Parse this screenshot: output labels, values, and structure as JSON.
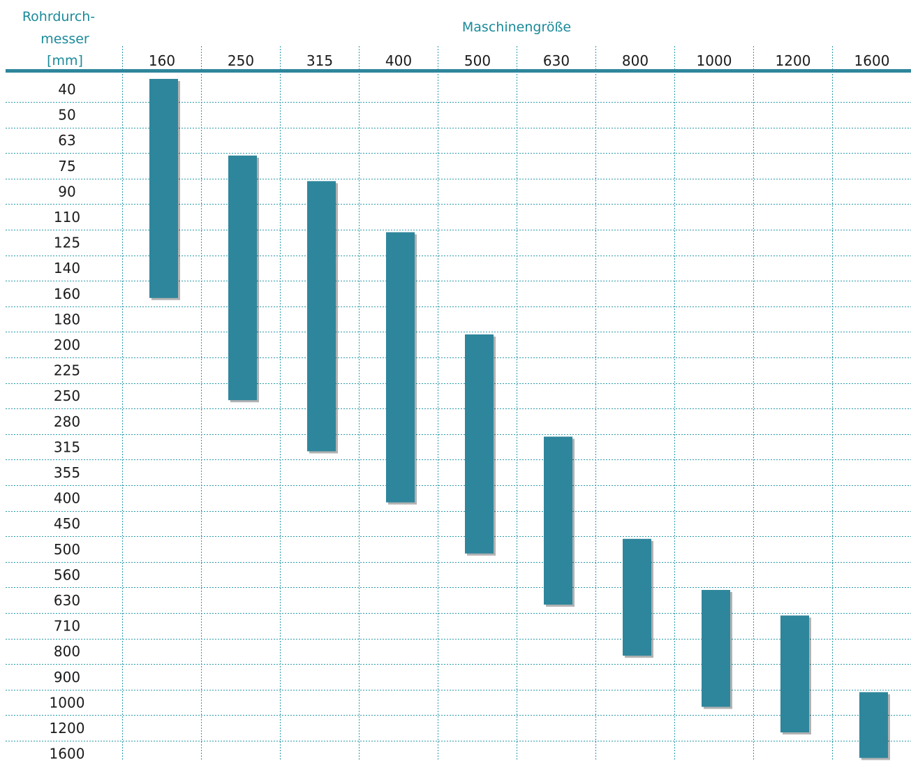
{
  "chart_data": {
    "type": "bar",
    "header": {
      "row_axis_title": [
        "Rohrdurch-",
        "messer",
        "[mm]"
      ],
      "column_axis_title": "Maschinengröße"
    },
    "columns": [
      "160",
      "250",
      "315",
      "400",
      "500",
      "630",
      "800",
      "1000",
      "1200",
      "1600"
    ],
    "rows": [
      "40",
      "50",
      "63",
      "75",
      "90",
      "110",
      "125",
      "140",
      "160",
      "180",
      "200",
      "225",
      "250",
      "280",
      "315",
      "355",
      "400",
      "450",
      "500",
      "560",
      "630",
      "710",
      "800",
      "900",
      "1000",
      "1200",
      "1600"
    ],
    "ranges": [
      {
        "machine": "160",
        "min": "40",
        "max": "160"
      },
      {
        "machine": "250",
        "min": "75",
        "max": "250"
      },
      {
        "machine": "315",
        "min": "90",
        "max": "315"
      },
      {
        "machine": "400",
        "min": "125",
        "max": "400"
      },
      {
        "machine": "500",
        "min": "200",
        "max": "500"
      },
      {
        "machine": "630",
        "min": "315",
        "max": "630"
      },
      {
        "machine": "800",
        "min": "500",
        "max": "800"
      },
      {
        "machine": "1000",
        "min": "630",
        "max": "1000"
      },
      {
        "machine": "1200",
        "min": "710",
        "max": "1200"
      },
      {
        "machine": "1600",
        "min": "1000",
        "max": "1600"
      }
    ],
    "grid": true,
    "colors": {
      "bar": "#2e869c",
      "header": "#1a8a9a",
      "grid": "#2a9aa8",
      "text": "#1a1a1a"
    }
  }
}
